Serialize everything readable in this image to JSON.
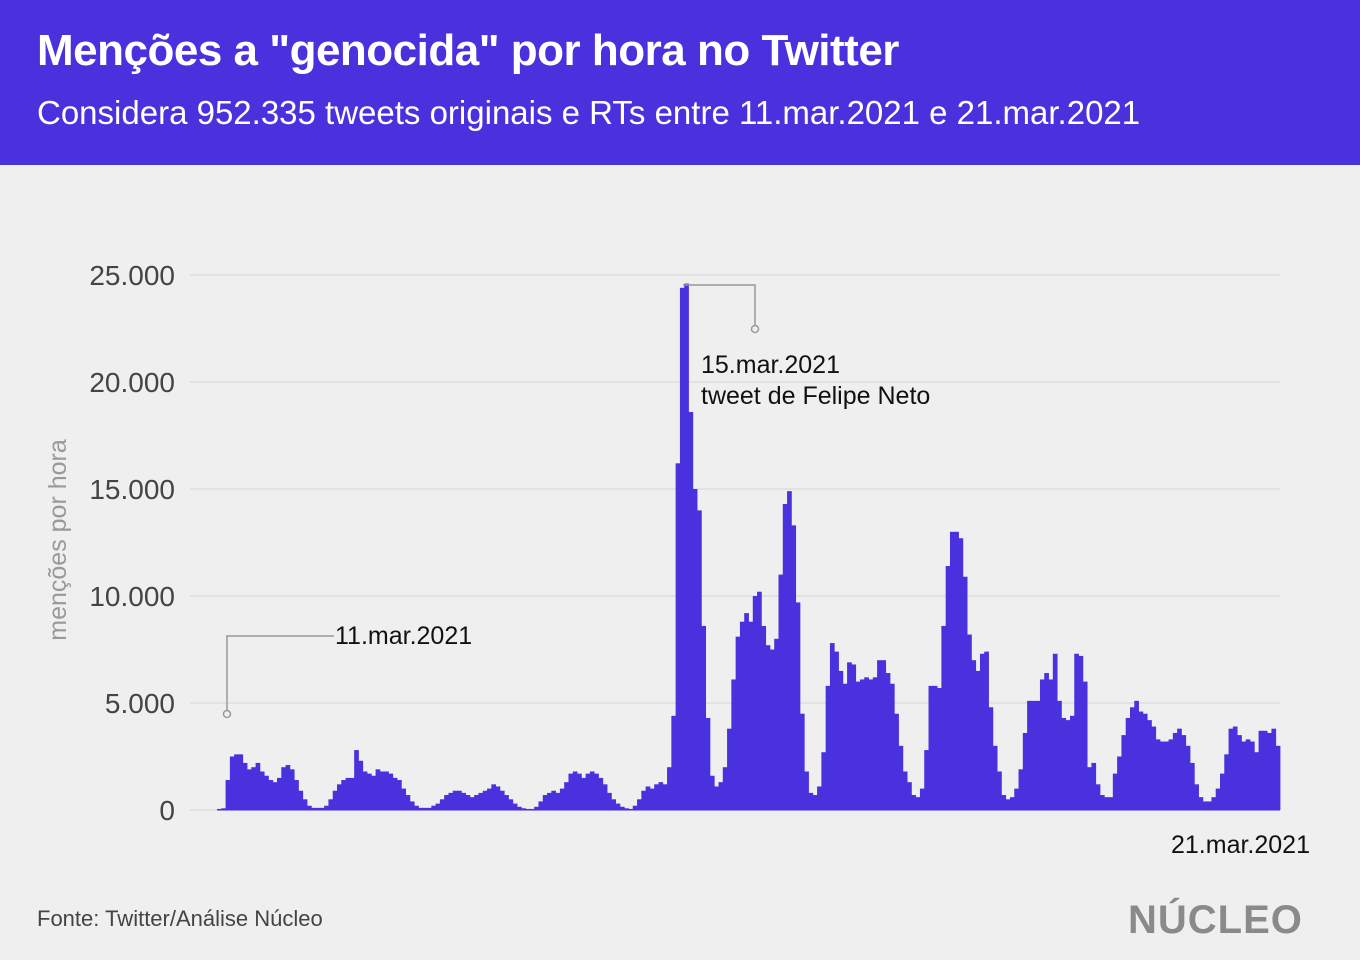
{
  "header": {
    "title": "Menções a \"genocida\" por hora no Twitter",
    "subtitle": "Considera 952.335 tweets originais e RTs entre 11.mar.2021 e 21.mar.2021"
  },
  "footer": {
    "source": "Fonte: Twitter/Análise Núcleo",
    "logo": "NÚCLEO"
  },
  "colors": {
    "header_bg": "#4a31de",
    "bar": "#4a31de",
    "background": "#efefef",
    "grid": "#d9d9d9",
    "axis_text": "#444444",
    "ylabel_text": "#999999"
  },
  "chart_data": {
    "type": "bar",
    "title": "Menções a \"genocida\" por hora no Twitter",
    "subtitle": "Considera 952.335 tweets originais e RTs entre 11.mar.2021 e 21.mar.2021",
    "xlabel": "",
    "ylabel": "menções por hora",
    "ylim": [
      0,
      25000
    ],
    "yticks": [
      0,
      5000,
      10000,
      15000,
      20000,
      25000
    ],
    "ytick_labels": [
      "0",
      "5.000",
      "10.000",
      "15.000",
      "20.000",
      "25.000"
    ],
    "grid": true,
    "x_start_label": "11.mar.2021",
    "x_end_label": "21.mar.2021",
    "series": [
      {
        "values": [
          50,
          80,
          1400,
          2500,
          2600,
          2600,
          2200,
          1900,
          2000,
          2200,
          1800,
          1600,
          1400,
          1300,
          1500,
          2000,
          2100,
          1900,
          1400,
          900,
          500,
          200,
          100,
          100,
          100,
          200,
          500,
          900,
          1200,
          1400,
          1500,
          1500,
          2800,
          2300,
          1800,
          1700,
          1600,
          1900,
          1800,
          1800,
          1700,
          1500,
          1400,
          1000,
          700,
          400,
          200,
          100,
          100,
          100,
          200,
          300,
          500,
          700,
          800,
          900,
          900,
          800,
          700,
          600,
          700,
          800,
          900,
          1000,
          1200,
          1100,
          900,
          700,
          500,
          300,
          150,
          80,
          50,
          50,
          150,
          400,
          700,
          800,
          900,
          800,
          1000,
          1300,
          1700,
          1800,
          1700,
          1500,
          1700,
          1800,
          1700,
          1500,
          1200,
          800,
          500,
          300,
          150,
          80,
          50,
          200,
          500,
          900,
          1100,
          1000,
          1200,
          1300,
          1200,
          2000,
          4400,
          16200,
          24400,
          24600,
          18600,
          15000,
          14000,
          8600,
          4300,
          1600,
          1100,
          1300,
          2000,
          3800,
          6100,
          8100,
          8800,
          9200,
          8800,
          10000,
          10200,
          8600,
          7700,
          7500,
          8000,
          11000,
          14300,
          14900,
          13300,
          9700,
          4500,
          1800,
          800,
          700,
          1100,
          2700,
          5800,
          7800,
          7400,
          6500,
          5900,
          6900,
          6800,
          6000,
          6100,
          6200,
          6100,
          6200,
          7000,
          7000,
          6400,
          5900,
          4500,
          3000,
          1800,
          1300,
          700,
          600,
          1000,
          2800,
          5800,
          5800,
          5700,
          8600,
          11400,
          13000,
          13000,
          12700,
          10900,
          8200,
          7000,
          6500,
          7300,
          7400,
          4800,
          3000,
          1800,
          700,
          500,
          600,
          1000,
          1900,
          3600,
          5100,
          5100,
          5100,
          6100,
          6400,
          6100,
          7300,
          5100,
          4300,
          4200,
          4400,
          7300,
          7200,
          6000,
          2000,
          2200,
          1200,
          700,
          600,
          600,
          1700,
          2500,
          3500,
          4300,
          4800,
          5100,
          4600,
          4500,
          4200,
          3900,
          3300,
          3200,
          3200,
          3300,
          3600,
          3800,
          3500,
          3000,
          2200,
          1200,
          600,
          400,
          400,
          600,
          1000,
          1700,
          2600,
          3800,
          3900,
          3500,
          3200,
          3300,
          3200,
          2700,
          3700,
          3700,
          3600,
          3800,
          3000
        ]
      }
    ],
    "annotations": [
      {
        "label": "11.mar.2021",
        "target_index": 0
      },
      {
        "label_line1": "15.mar.2021",
        "label_line2": "tweet de Felipe Neto",
        "target_index": 108
      }
    ]
  }
}
